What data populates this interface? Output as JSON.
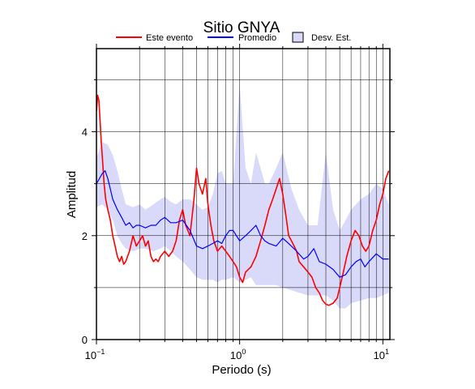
{
  "chart_data": {
    "type": "line",
    "title": "Sitio GNYA",
    "xlabel": "Periodo (s)",
    "ylabel": "Amplitud",
    "xscale": "log",
    "xlim": [
      0.1,
      11.2
    ],
    "ylim": [
      0,
      5.6
    ],
    "grid": true,
    "legend_position": "top",
    "x_ticks": [
      {
        "value": 0.1,
        "base": "10",
        "exp": "−1"
      },
      {
        "value": 1,
        "base": "10",
        "exp": "0"
      },
      {
        "value": 10,
        "base": "10",
        "exp": "1"
      }
    ],
    "y_ticks": [
      {
        "value": 0,
        "label": "0"
      },
      {
        "value": 2,
        "label": "2"
      },
      {
        "value": 4,
        "label": "4"
      }
    ],
    "colors": {
      "event": "#ff0000",
      "mean": "#0000ff",
      "std_fill": "#d9d9fa"
    },
    "legend": [
      {
        "label": "Este evento",
        "kind": "line",
        "color": "#ff0000"
      },
      {
        "label": "Promedio",
        "kind": "line",
        "color": "#0000ff"
      },
      {
        "label": "Desv. Est.",
        "kind": "box",
        "color": "#d9d9fa"
      }
    ],
    "series": [
      {
        "name": "Este evento",
        "role": "event",
        "x": [
          0.1,
          0.102,
          0.104,
          0.106,
          0.108,
          0.11,
          0.113,
          0.116,
          0.12,
          0.125,
          0.13,
          0.135,
          0.14,
          0.145,
          0.15,
          0.155,
          0.16,
          0.17,
          0.18,
          0.19,
          0.2,
          0.21,
          0.22,
          0.23,
          0.24,
          0.25,
          0.26,
          0.27,
          0.28,
          0.3,
          0.32,
          0.34,
          0.36,
          0.38,
          0.4,
          0.42,
          0.45,
          0.48,
          0.5,
          0.52,
          0.55,
          0.58,
          0.6,
          0.63,
          0.66,
          0.7,
          0.75,
          0.8,
          0.85,
          0.9,
          0.95,
          1.0,
          1.05,
          1.1,
          1.2,
          1.3,
          1.4,
          1.5,
          1.6,
          1.7,
          1.8,
          1.9,
          2.0,
          2.1,
          2.2,
          2.3,
          2.4,
          2.5,
          2.6,
          2.8,
          3.0,
          3.2,
          3.4,
          3.6,
          3.8,
          4.0,
          4.2,
          4.5,
          4.8,
          5.0,
          5.3,
          5.6,
          6.0,
          6.4,
          6.8,
          7.2,
          7.6,
          8.0,
          8.5,
          9.0,
          9.5,
          10.0,
          10.5,
          11.0
        ],
        "y": [
          4.4,
          4.7,
          4.6,
          4.2,
          3.8,
          3.5,
          3.0,
          2.7,
          2.5,
          2.3,
          2.0,
          1.8,
          1.6,
          1.5,
          1.6,
          1.45,
          1.5,
          1.7,
          2.0,
          1.8,
          1.9,
          2.0,
          1.8,
          1.9,
          1.6,
          1.5,
          1.55,
          1.5,
          1.6,
          1.7,
          1.6,
          1.7,
          1.9,
          2.3,
          2.5,
          2.2,
          2.0,
          2.7,
          3.3,
          3.0,
          2.8,
          3.1,
          2.6,
          2.2,
          1.9,
          1.7,
          1.8,
          1.7,
          1.6,
          1.5,
          1.4,
          1.2,
          1.1,
          1.3,
          1.4,
          1.6,
          1.9,
          2.2,
          2.5,
          2.7,
          2.9,
          3.1,
          2.8,
          2.4,
          2.0,
          1.9,
          1.8,
          1.7,
          1.5,
          1.4,
          1.3,
          1.2,
          1.0,
          0.9,
          0.75,
          0.68,
          0.66,
          0.7,
          0.8,
          1.0,
          1.3,
          1.6,
          1.9,
          2.1,
          2.0,
          1.8,
          1.7,
          1.8,
          2.1,
          2.3,
          2.6,
          2.8,
          3.1,
          3.25
        ]
      },
      {
        "name": "Promedio",
        "role": "mean",
        "x": [
          0.1,
          0.105,
          0.11,
          0.115,
          0.12,
          0.125,
          0.13,
          0.14,
          0.15,
          0.16,
          0.17,
          0.18,
          0.19,
          0.2,
          0.22,
          0.24,
          0.26,
          0.28,
          0.3,
          0.33,
          0.36,
          0.4,
          0.45,
          0.5,
          0.55,
          0.6,
          0.65,
          0.7,
          0.75,
          0.8,
          0.85,
          0.9,
          1.0,
          1.1,
          1.2,
          1.3,
          1.4,
          1.5,
          1.6,
          1.8,
          2.0,
          2.2,
          2.5,
          2.8,
          3.0,
          3.3,
          3.6,
          4.0,
          4.5,
          5.0,
          5.5,
          6.0,
          6.5,
          7.0,
          7.5,
          8.0,
          9.0,
          10.0,
          11.0
        ],
        "y": [
          3.0,
          3.1,
          3.2,
          3.25,
          3.1,
          2.9,
          2.7,
          2.5,
          2.35,
          2.2,
          2.25,
          2.15,
          2.2,
          2.2,
          2.15,
          2.2,
          2.2,
          2.3,
          2.35,
          2.25,
          2.25,
          2.3,
          2.1,
          1.8,
          1.75,
          1.8,
          1.85,
          1.9,
          1.85,
          2.0,
          2.1,
          2.1,
          1.9,
          2.0,
          2.1,
          2.2,
          2.0,
          1.9,
          1.85,
          1.8,
          1.95,
          1.85,
          1.7,
          1.55,
          1.6,
          1.75,
          1.5,
          1.45,
          1.35,
          1.2,
          1.25,
          1.4,
          1.5,
          1.55,
          1.4,
          1.5,
          1.65,
          1.55,
          1.55
        ]
      }
    ],
    "std_band": {
      "x": [
        0.1,
        0.11,
        0.12,
        0.13,
        0.14,
        0.15,
        0.16,
        0.18,
        0.2,
        0.22,
        0.25,
        0.28,
        0.3,
        0.33,
        0.36,
        0.4,
        0.45,
        0.5,
        0.55,
        0.6,
        0.65,
        0.7,
        0.75,
        0.8,
        0.9,
        1.0,
        1.05,
        1.1,
        1.2,
        1.3,
        1.4,
        1.5,
        1.6,
        1.8,
        2.0,
        2.3,
        2.6,
        3.0,
        3.5,
        4.0,
        4.5,
        5.0,
        5.5,
        6.0,
        7.0,
        8.0,
        9.0,
        10.0,
        11.0
      ],
      "upper": [
        3.5,
        3.8,
        3.75,
        3.55,
        3.25,
        2.9,
        2.6,
        2.55,
        2.6,
        2.5,
        2.6,
        2.7,
        2.75,
        2.65,
        2.6,
        2.7,
        2.7,
        2.6,
        2.5,
        2.55,
        2.8,
        3.2,
        3.25,
        3.0,
        3.0,
        4.9,
        4.1,
        3.3,
        3.0,
        3.6,
        3.3,
        3.0,
        3.0,
        3.3,
        3.6,
        2.9,
        2.5,
        2.2,
        2.2,
        3.6,
        2.5,
        2.1,
        2.3,
        2.5,
        2.7,
        2.8,
        3.0,
        2.9,
        2.6
      ],
      "lower": [
        2.55,
        2.6,
        2.5,
        2.3,
        2.0,
        1.85,
        1.75,
        1.7,
        1.75,
        1.75,
        1.7,
        1.75,
        1.8,
        1.7,
        1.6,
        1.5,
        1.35,
        1.2,
        1.15,
        1.15,
        1.15,
        1.1,
        1.15,
        1.15,
        1.2,
        1.1,
        1.1,
        1.15,
        1.2,
        1.05,
        1.05,
        1.05,
        1.05,
        1.05,
        1.0,
        0.95,
        0.9,
        0.85,
        0.85,
        0.85,
        0.75,
        0.6,
        0.6,
        0.7,
        0.75,
        0.8,
        0.8,
        0.85,
        0.9
      ]
    }
  }
}
